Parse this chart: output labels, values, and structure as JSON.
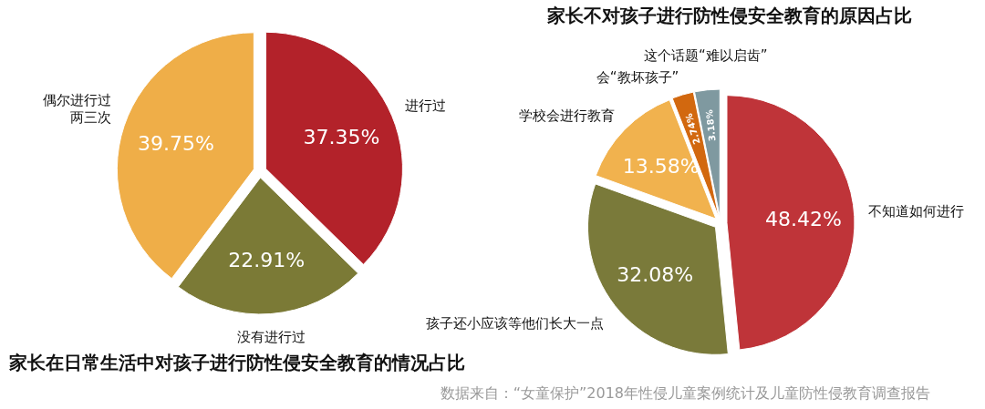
{
  "chart_data": [
    {
      "type": "pie",
      "title": "家长在日常生活中对孩子进行防性侵安全教育的情况占比",
      "categories": [
        "进行过",
        "没有进行过",
        "偶尔进行过两三次"
      ],
      "values": [
        37.35,
        22.91,
        39.75
      ],
      "value_labels": [
        "37.35%",
        "22.91%",
        "39.75%"
      ],
      "colors": [
        "#b3222a",
        "#7b7a36",
        "#efae48"
      ]
    },
    {
      "type": "pie",
      "title": "家长不对孩子进行防性侵安全教育的原因占比",
      "categories": [
        "不知道如何进行",
        "孩子还小应该等他们长大一点",
        "学校会进行教育",
        "会“教坏孩子”",
        "这个话题“难以启齿”"
      ],
      "values": [
        48.42,
        32.08,
        13.58,
        2.74,
        3.18
      ],
      "value_labels": [
        "48.42%",
        "32.08%",
        "13.58%",
        "2.74%",
        "3.18%"
      ],
      "colors": [
        "#bf3439",
        "#7a7a3a",
        "#f1b24e",
        "#d2680f",
        "#7f99a0"
      ],
      "annotations": [
        "数据来自：“女童保护”2018年性侵儿童案例统计及儿童防性侵教育调查报告"
      ]
    }
  ]
}
